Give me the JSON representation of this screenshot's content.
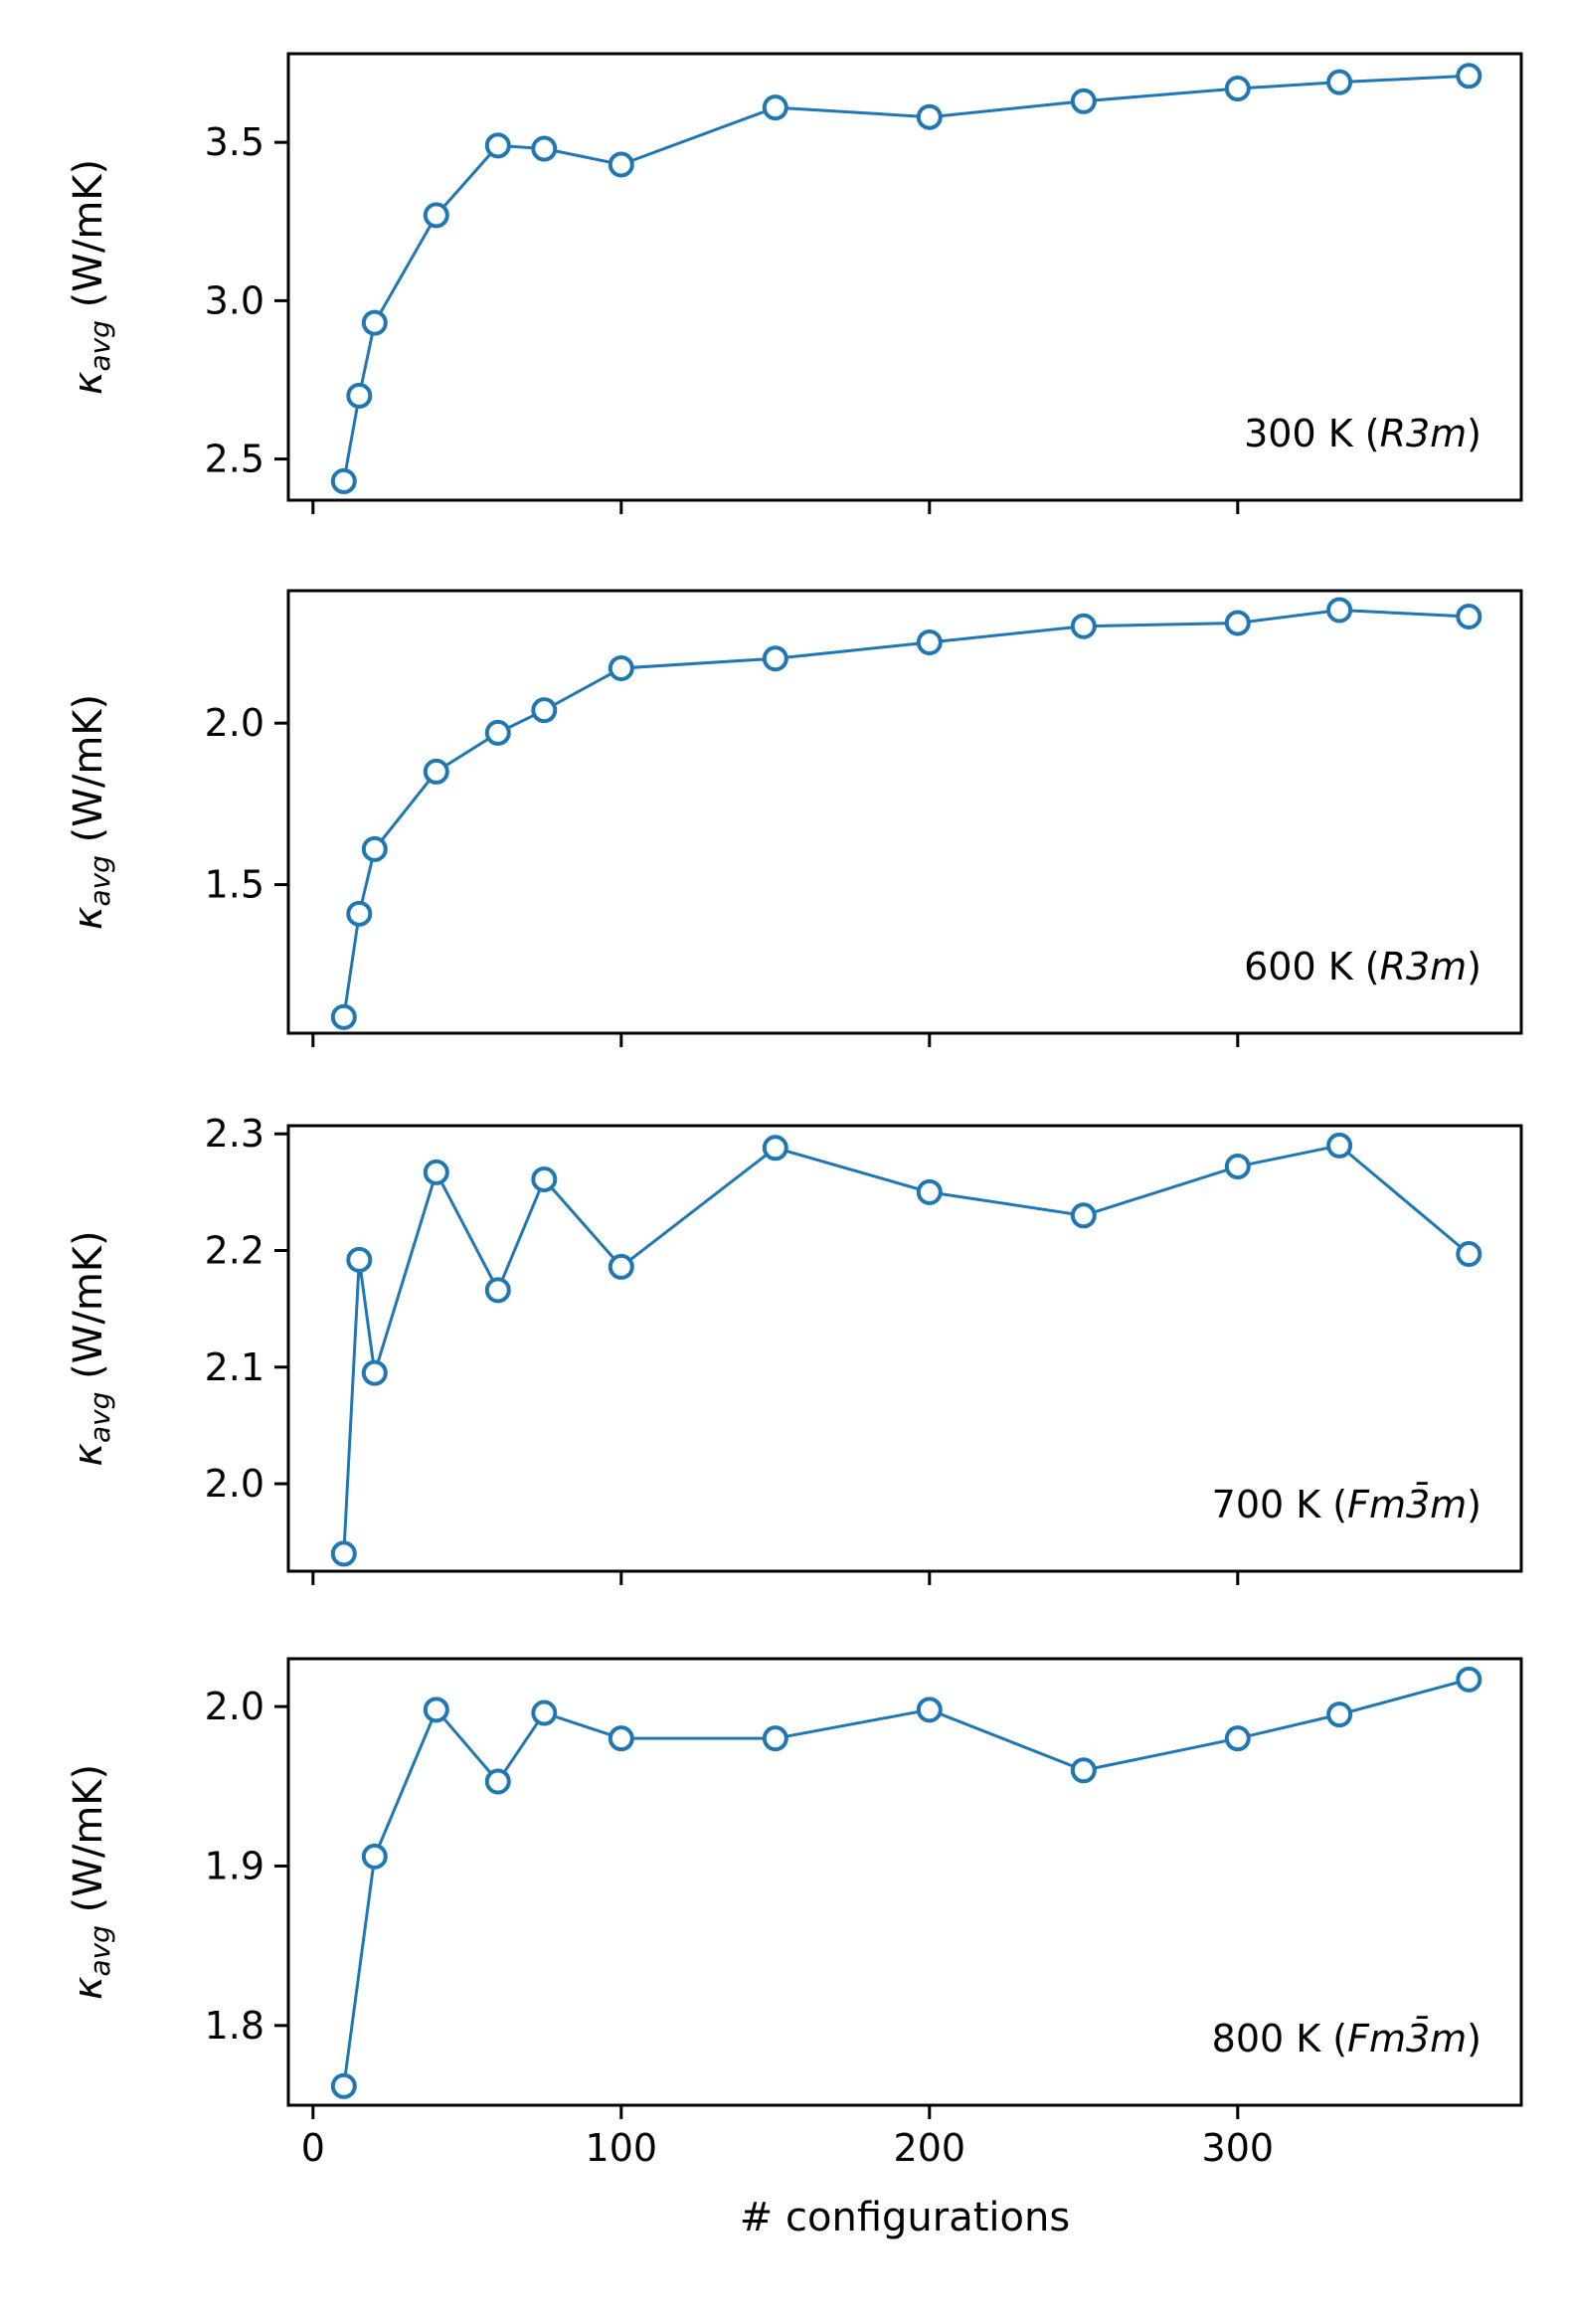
{
  "chart_data": {
    "type": "line",
    "shared_x": true,
    "xlabel": "# configurations",
    "xlim": [
      -8,
      392
    ],
    "xticks": [
      0,
      100,
      200,
      300
    ],
    "xtick_labels": [
      "0",
      "100",
      "200",
      "300"
    ],
    "colors": {
      "series": "#1f77b4",
      "frame": "#000000"
    },
    "panels": [
      {
        "label_text": "300 K (",
        "label_italic": "R3m",
        "label_close": ")",
        "ylabel_main": "κ",
        "ylabel_sub": "avg",
        "ylabel_unit": " (W/mK)",
        "ylim": [
          2.37,
          3.78
        ],
        "yticks": [
          2.5,
          3.0,
          3.5
        ],
        "ytick_labels": [
          "2.5",
          "3.0",
          "3.5"
        ],
        "x": [
          10,
          15,
          20,
          40,
          60,
          75,
          100,
          150,
          200,
          250,
          300,
          333,
          375
        ],
        "y": [
          2.43,
          2.7,
          2.93,
          3.27,
          3.49,
          3.48,
          3.43,
          3.61,
          3.58,
          3.63,
          3.67,
          3.69,
          3.71
        ]
      },
      {
        "label_text": "600 K (",
        "label_italic": "R3m",
        "label_close": ")",
        "ylabel_main": "κ",
        "ylabel_sub": "avg",
        "ylabel_unit": " (W/mK)",
        "ylim": [
          1.04,
          2.41
        ],
        "yticks": [
          1.5,
          2.0
        ],
        "ytick_labels": [
          "1.5",
          "2.0"
        ],
        "x": [
          10,
          15,
          20,
          40,
          60,
          75,
          100,
          150,
          200,
          250,
          300,
          333,
          375
        ],
        "y": [
          1.09,
          1.41,
          1.61,
          1.85,
          1.97,
          2.04,
          2.17,
          2.2,
          2.25,
          2.3,
          2.31,
          2.35,
          2.33
        ]
      },
      {
        "label_text": "700 K (",
        "label_italic": "Fm3̄m",
        "label_close": ")",
        "ylabel_main": "κ",
        "ylabel_sub": "avg",
        "ylabel_unit": " (W/mK)",
        "ylim": [
          1.925,
          2.307
        ],
        "yticks": [
          2.0,
          2.1,
          2.2,
          2.3
        ],
        "ytick_labels": [
          "2.0",
          "2.1",
          "2.2",
          "2.3"
        ],
        "x": [
          10,
          15,
          20,
          40,
          60,
          75,
          100,
          150,
          200,
          250,
          300,
          333,
          375
        ],
        "y": [
          1.94,
          2.192,
          2.095,
          2.267,
          2.166,
          2.261,
          2.186,
          2.288,
          2.25,
          2.23,
          2.272,
          2.29,
          2.197
        ]
      },
      {
        "label_text": "800 K (",
        "label_italic": "Fm3̄m",
        "label_close": ")",
        "ylabel_main": "κ",
        "ylabel_sub": "avg",
        "ylabel_unit": " (W/mK)",
        "ylim": [
          1.75,
          2.03
        ],
        "yticks": [
          1.8,
          1.9,
          2.0
        ],
        "ytick_labels": [
          "1.8",
          "1.9",
          "2.0"
        ],
        "x": [
          10,
          20,
          40,
          60,
          75,
          100,
          150,
          200,
          250,
          300,
          333,
          375
        ],
        "y": [
          1.762,
          1.906,
          1.998,
          1.953,
          1.996,
          1.98,
          1.98,
          1.998,
          1.96,
          1.98,
          1.995,
          2.017
        ]
      }
    ]
  }
}
